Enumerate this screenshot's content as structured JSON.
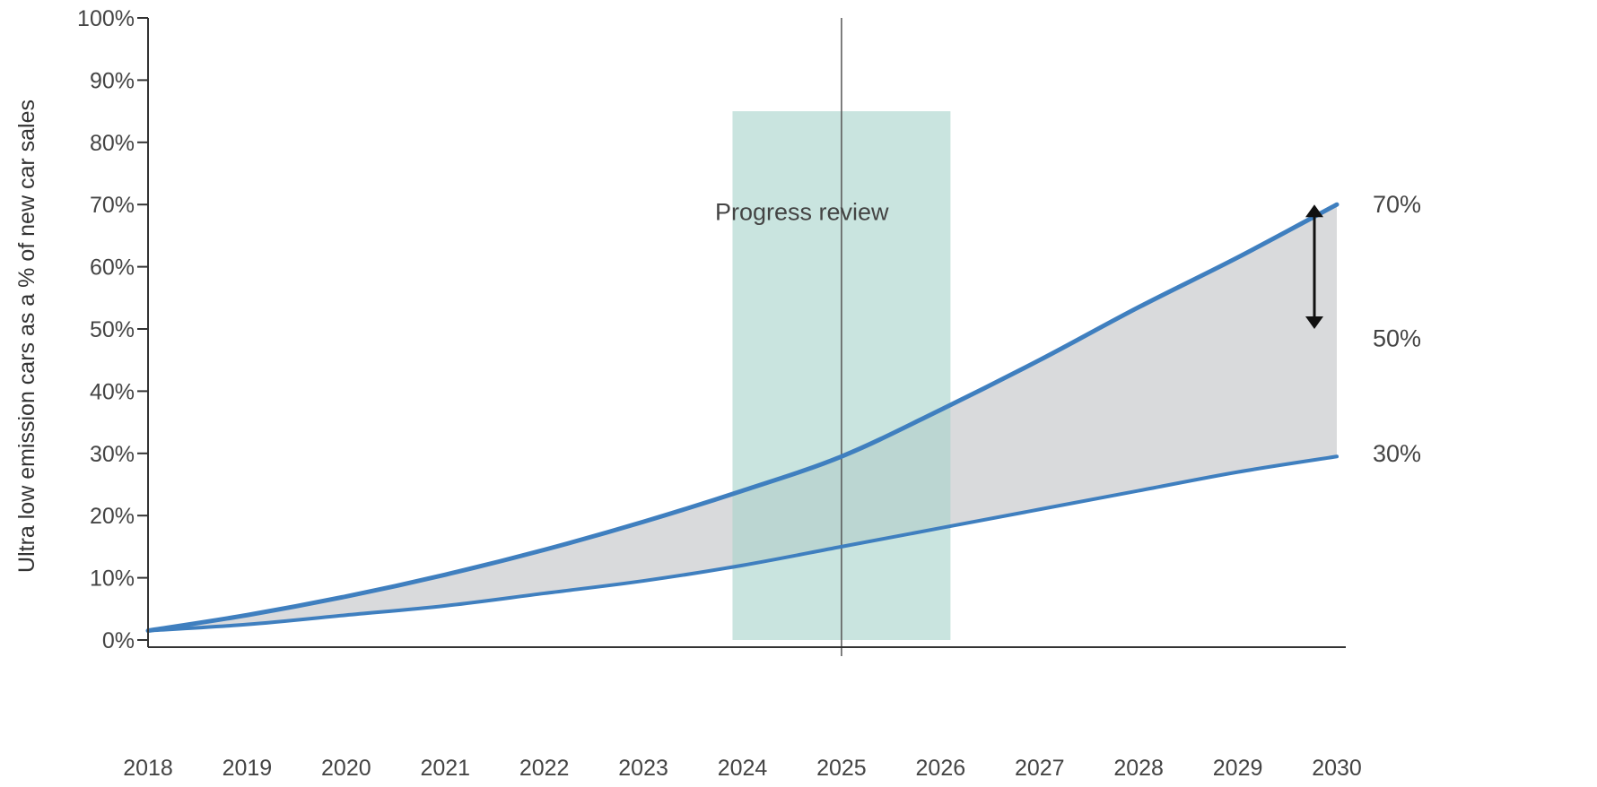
{
  "chart_data": {
    "type": "line",
    "title": "",
    "xlabel": "",
    "ylabel": "Ultra low emission cars as a % of new car sales",
    "x": [
      2018,
      2019,
      2020,
      2021,
      2022,
      2023,
      2024,
      2025,
      2026,
      2027,
      2028,
      2029,
      2030
    ],
    "xlim": [
      2018,
      2030
    ],
    "ylim": [
      0,
      100
    ],
    "y_ticks": [
      "0%",
      "10%",
      "20%",
      "30%",
      "40%",
      "50%",
      "60%",
      "70%",
      "80%",
      "90%",
      "100%"
    ],
    "x_ticks": [
      "2018",
      "2019",
      "2020",
      "2021",
      "2022",
      "2023",
      "2024",
      "2025",
      "2026",
      "2027",
      "2028",
      "2029",
      "2030"
    ],
    "grid": false,
    "series": [
      {
        "values": [
          1.5,
          4,
          7,
          10.5,
          14.5,
          19,
          24,
          29.5,
          37,
          45,
          53.5,
          61.5,
          70
        ],
        "color": "#3f7fbf"
      },
      {
        "values": [
          1.5,
          2.5,
          4,
          5.5,
          7.5,
          9.5,
          12,
          15,
          18,
          21,
          24,
          27,
          29.5
        ],
        "color": "#3f7fbf"
      }
    ],
    "range_fill_color": "#d9dadc",
    "highlight_band": {
      "x_start": 2023.9,
      "x_end": 2026.1,
      "y_top": 85,
      "color": "#a8d3cc"
    },
    "reference_line": {
      "x": 2025,
      "color": "#555555"
    },
    "annotations": {
      "progress_review": "Progress review",
      "end_label_high": "70%",
      "end_label_mid": "50%",
      "end_label_low": "30%",
      "arrow_from": 50,
      "arrow_to": 70
    }
  }
}
